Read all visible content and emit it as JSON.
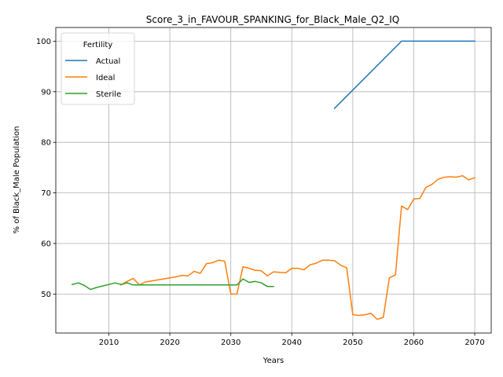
{
  "chart_data": {
    "type": "line",
    "title": "Score_3_in_FAVOUR_SPANKING_for_Black_Male_Q2_IQ",
    "xlabel": "Years",
    "ylabel": "% of Black_Male Population",
    "xlim": [
      2001.3,
      2072.7
    ],
    "ylim": [
      42.3,
      102.7
    ],
    "xticks": [
      2010,
      2020,
      2030,
      2040,
      2050,
      2060,
      2070
    ],
    "yticks": [
      50,
      60,
      70,
      80,
      90,
      100
    ],
    "grid": true,
    "legend": {
      "title": "Fertility",
      "placement": "top-left"
    },
    "series": [
      {
        "name": "Actual",
        "color": "#1f77b4",
        "points": [
          [
            2047,
            86.7
          ],
          [
            2058,
            100.0
          ],
          [
            2070,
            100.0
          ]
        ]
      },
      {
        "name": "Ideal",
        "color": "#ff7f0e",
        "points": [
          [
            2012,
            51.8
          ],
          [
            2013,
            52.5
          ],
          [
            2014,
            53.1
          ],
          [
            2015,
            51.8
          ],
          [
            2016,
            52.4
          ],
          [
            2017,
            52.6
          ],
          [
            2018,
            52.8
          ],
          [
            2019,
            53.0
          ],
          [
            2020,
            53.2
          ],
          [
            2021,
            53.4
          ],
          [
            2022,
            53.7
          ],
          [
            2023,
            53.6
          ],
          [
            2024,
            54.5
          ],
          [
            2025,
            54.1
          ],
          [
            2026,
            56.0
          ],
          [
            2027,
            56.2
          ],
          [
            2028,
            56.7
          ],
          [
            2029,
            56.5
          ],
          [
            2030,
            50.0
          ],
          [
            2031,
            50.0
          ],
          [
            2032,
            55.4
          ],
          [
            2033,
            55.1
          ],
          [
            2034,
            54.7
          ],
          [
            2035,
            54.6
          ],
          [
            2036,
            53.6
          ],
          [
            2037,
            54.4
          ],
          [
            2038,
            54.3
          ],
          [
            2039,
            54.2
          ],
          [
            2040,
            55.1
          ],
          [
            2041,
            55.1
          ],
          [
            2042,
            54.8
          ],
          [
            2043,
            55.8
          ],
          [
            2044,
            56.1
          ],
          [
            2045,
            56.7
          ],
          [
            2046,
            56.7
          ],
          [
            2047,
            56.6
          ],
          [
            2048,
            55.7
          ],
          [
            2049,
            55.2
          ],
          [
            2050,
            45.9
          ],
          [
            2051,
            45.8
          ],
          [
            2052,
            45.9
          ],
          [
            2053,
            46.2
          ],
          [
            2054,
            45.0
          ],
          [
            2055,
            45.4
          ],
          [
            2056,
            53.2
          ],
          [
            2057,
            53.8
          ],
          [
            2058,
            67.4
          ],
          [
            2059,
            66.7
          ],
          [
            2060,
            68.8
          ],
          [
            2061,
            68.9
          ],
          [
            2062,
            71.1
          ],
          [
            2063,
            71.7
          ],
          [
            2064,
            72.7
          ],
          [
            2065,
            73.1
          ],
          [
            2066,
            73.2
          ],
          [
            2067,
            73.1
          ],
          [
            2068,
            73.4
          ],
          [
            2069,
            72.6
          ],
          [
            2070,
            73.0
          ]
        ]
      },
      {
        "name": "Sterile",
        "color": "#2ca02c",
        "points": [
          [
            2004,
            51.9
          ],
          [
            2005,
            52.2
          ],
          [
            2006,
            51.7
          ],
          [
            2007,
            50.9
          ],
          [
            2008,
            51.3
          ],
          [
            2009,
            51.6
          ],
          [
            2010,
            51.9
          ],
          [
            2011,
            52.2
          ],
          [
            2012,
            51.9
          ],
          [
            2013,
            52.2
          ],
          [
            2014,
            51.8
          ],
          [
            2015,
            51.8
          ],
          [
            2016,
            51.8
          ],
          [
            2017,
            51.8
          ],
          [
            2018,
            51.8
          ],
          [
            2019,
            51.8
          ],
          [
            2020,
            51.8
          ],
          [
            2021,
            51.8
          ],
          [
            2022,
            51.8
          ],
          [
            2023,
            51.8
          ],
          [
            2024,
            51.8
          ],
          [
            2025,
            51.8
          ],
          [
            2026,
            51.8
          ],
          [
            2027,
            51.8
          ],
          [
            2028,
            51.8
          ],
          [
            2029,
            51.8
          ],
          [
            2030,
            51.8
          ],
          [
            2031,
            51.8
          ],
          [
            2032,
            53.0
          ],
          [
            2033,
            52.3
          ],
          [
            2034,
            52.5
          ],
          [
            2035,
            52.2
          ],
          [
            2036,
            51.5
          ],
          [
            2037,
            51.5
          ]
        ]
      }
    ]
  }
}
